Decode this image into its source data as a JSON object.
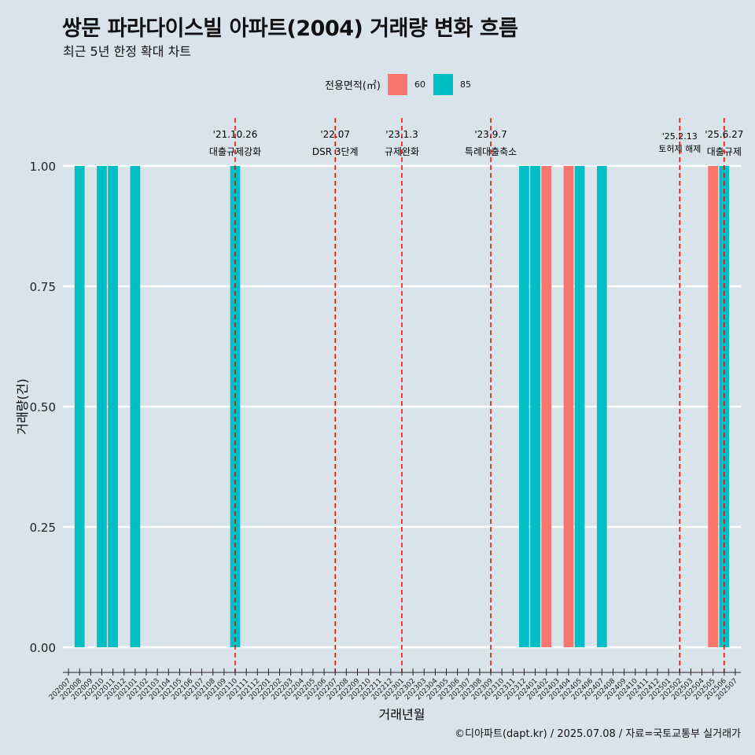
{
  "title": "쌍문 파라다이스빌 아파트(2004) 거래량 변화 흐름",
  "subtitle": "최근 5년 한정 확대 차트",
  "caption": "©디아파트(dapt.kr) / 2025.07.08 / 자료=국토교통부 실거래가",
  "colors": {
    "60": "#f8766d",
    "85": "#00bfc4",
    "event_line": "#ff0000",
    "grid": "#ffffff",
    "background": "#d8e4ea"
  },
  "chart_data": {
    "type": "bar",
    "xlabel": "거래년월",
    "ylabel": "거래량(건)",
    "ylim": [
      0,
      1
    ],
    "yticks": [
      "0.00",
      "0.25",
      "0.50",
      "0.75",
      "1.00"
    ],
    "grid": "horizontal",
    "legend": {
      "title": "전용면적(㎡)",
      "position": "top",
      "entries": [
        "60",
        "85"
      ]
    },
    "categories": [
      "202007",
      "202008",
      "202009",
      "202010",
      "202011",
      "202012",
      "202101",
      "202102",
      "202103",
      "202104",
      "202105",
      "202106",
      "202107",
      "202108",
      "202109",
      "202110",
      "202111",
      "202112",
      "202201",
      "202202",
      "202203",
      "202204",
      "202205",
      "202206",
      "202207",
      "202208",
      "202209",
      "202210",
      "202211",
      "202212",
      "202301",
      "202302",
      "202303",
      "202304",
      "202305",
      "202306",
      "202307",
      "202308",
      "202309",
      "202310",
      "202311",
      "202312",
      "202401",
      "202402",
      "202403",
      "202404",
      "202405",
      "202406",
      "202407",
      "202408",
      "202409",
      "202410",
      "202411",
      "202412",
      "202501",
      "202502",
      "202503",
      "202504",
      "202505",
      "202506",
      "202507"
    ],
    "series": [
      {
        "name": "60",
        "points": [
          {
            "x": "202402",
            "y": 1
          },
          {
            "x": "202404",
            "y": 1
          },
          {
            "x": "202505",
            "y": 1
          }
        ]
      },
      {
        "name": "85",
        "points": [
          {
            "x": "202008",
            "y": 1
          },
          {
            "x": "202010",
            "y": 1
          },
          {
            "x": "202011",
            "y": 1
          },
          {
            "x": "202101",
            "y": 1
          },
          {
            "x": "202110",
            "y": 1
          },
          {
            "x": "202312",
            "y": 1
          },
          {
            "x": "202401",
            "y": 1
          },
          {
            "x": "202405",
            "y": 1
          },
          {
            "x": "202407",
            "y": 1
          },
          {
            "x": "202506",
            "y": 1
          }
        ]
      }
    ],
    "events": [
      {
        "date": "'21.10.26",
        "label": "대출규제강화",
        "x": "202110"
      },
      {
        "date": "'22.07",
        "label": "DSR 3단계",
        "x": "202207"
      },
      {
        "date": "'23.1.3",
        "label": "규제완화",
        "x": "202301"
      },
      {
        "date": "'23.9.7",
        "label": "특례대출축소",
        "x": "202309"
      },
      {
        "date": "'25.2.13",
        "label": "토허제 해제",
        "x": "202502"
      },
      {
        "date": "'25.6.27",
        "label": "대출규제",
        "x": "202506"
      }
    ]
  }
}
